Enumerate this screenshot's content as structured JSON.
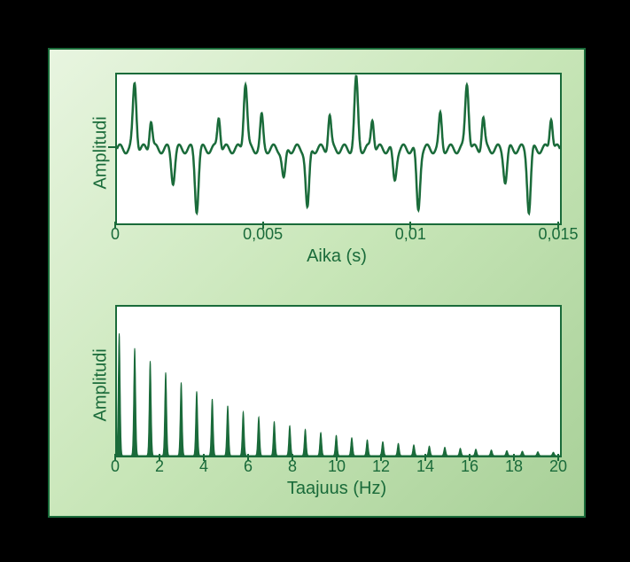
{
  "panel": {
    "bg_gradient": [
      "#e8f5e0",
      "#c8e6b8",
      "#a8d098"
    ],
    "border_color": "#1a6b3a"
  },
  "top_chart": {
    "type": "line",
    "ylabel": "Amplitudi",
    "xlabel": "Aika (s)",
    "xlim": [
      0,
      0.015
    ],
    "ylim": [
      -1,
      1
    ],
    "xtick_labels": [
      "0",
      "0,005",
      "0,01",
      "0,015"
    ],
    "xtick_values": [
      0,
      0.005,
      0.01,
      0.015
    ],
    "line_color": "#1a6b3a",
    "line_width": 2.5,
    "plot_bg": "#ffffff",
    "label_fontsize": 20,
    "tick_fontsize": 18,
    "waveform_pulses": [
      {
        "t": 0.0006,
        "h": 0.88,
        "w": 0.00012
      },
      {
        "t": 0.00115,
        "h": 0.4,
        "w": 0.0001
      },
      {
        "t": 0.0019,
        "h": -0.42,
        "w": 0.00012
      },
      {
        "t": 0.0027,
        "h": -0.8,
        "w": 0.00012
      },
      {
        "t": 0.00345,
        "h": 0.45,
        "w": 0.0001
      },
      {
        "t": 0.00435,
        "h": 0.9,
        "w": 0.00012
      },
      {
        "t": 0.0049,
        "h": 0.42,
        "w": 0.0001
      },
      {
        "t": 0.00565,
        "h": -0.42,
        "w": 0.00012
      },
      {
        "t": 0.00645,
        "h": -0.82,
        "w": 0.00012
      },
      {
        "t": 0.0072,
        "h": 0.45,
        "w": 0.0001
      },
      {
        "t": 0.0081,
        "h": 0.92,
        "w": 0.00012
      },
      {
        "t": 0.00865,
        "h": 0.42,
        "w": 0.0001
      },
      {
        "t": 0.0094,
        "h": -0.42,
        "w": 0.00012
      },
      {
        "t": 0.0102,
        "h": -0.82,
        "w": 0.00012
      },
      {
        "t": 0.01095,
        "h": 0.45,
        "w": 0.0001
      },
      {
        "t": 0.01185,
        "h": 0.9,
        "w": 0.00012
      },
      {
        "t": 0.0124,
        "h": 0.42,
        "w": 0.0001
      },
      {
        "t": 0.01315,
        "h": -0.42,
        "w": 0.00012
      },
      {
        "t": 0.01395,
        "h": -0.82,
        "w": 0.00012
      },
      {
        "t": 0.0147,
        "h": 0.45,
        "w": 0.0001
      }
    ],
    "baseline_ripple_amp": 0.06,
    "baseline_ripple_period": 0.0004
  },
  "bottom_chart": {
    "type": "area",
    "ylabel": "Amplitudi",
    "xlabel": "Taajuus (Hz)",
    "xlim": [
      0,
      20
    ],
    "ylim": [
      0,
      1
    ],
    "xtick_labels": [
      "0",
      "2",
      "4",
      "6",
      "8",
      "10",
      "12",
      "14",
      "16",
      "18",
      "20"
    ],
    "xtick_values": [
      0,
      2,
      4,
      6,
      8,
      10,
      12,
      14,
      16,
      18,
      20
    ],
    "fill_color": "#1a6b3a",
    "fill_opacity": 1.0,
    "line_color": "#1a6b3a",
    "plot_bg": "#ffffff",
    "label_fontsize": 20,
    "tick_fontsize": 18,
    "peak_spacing": 0.7,
    "peak_count": 29,
    "peak_initial_height": 0.82,
    "peak_decay": 0.88,
    "peak_width": 0.28,
    "first_peak_at": 0.1
  }
}
